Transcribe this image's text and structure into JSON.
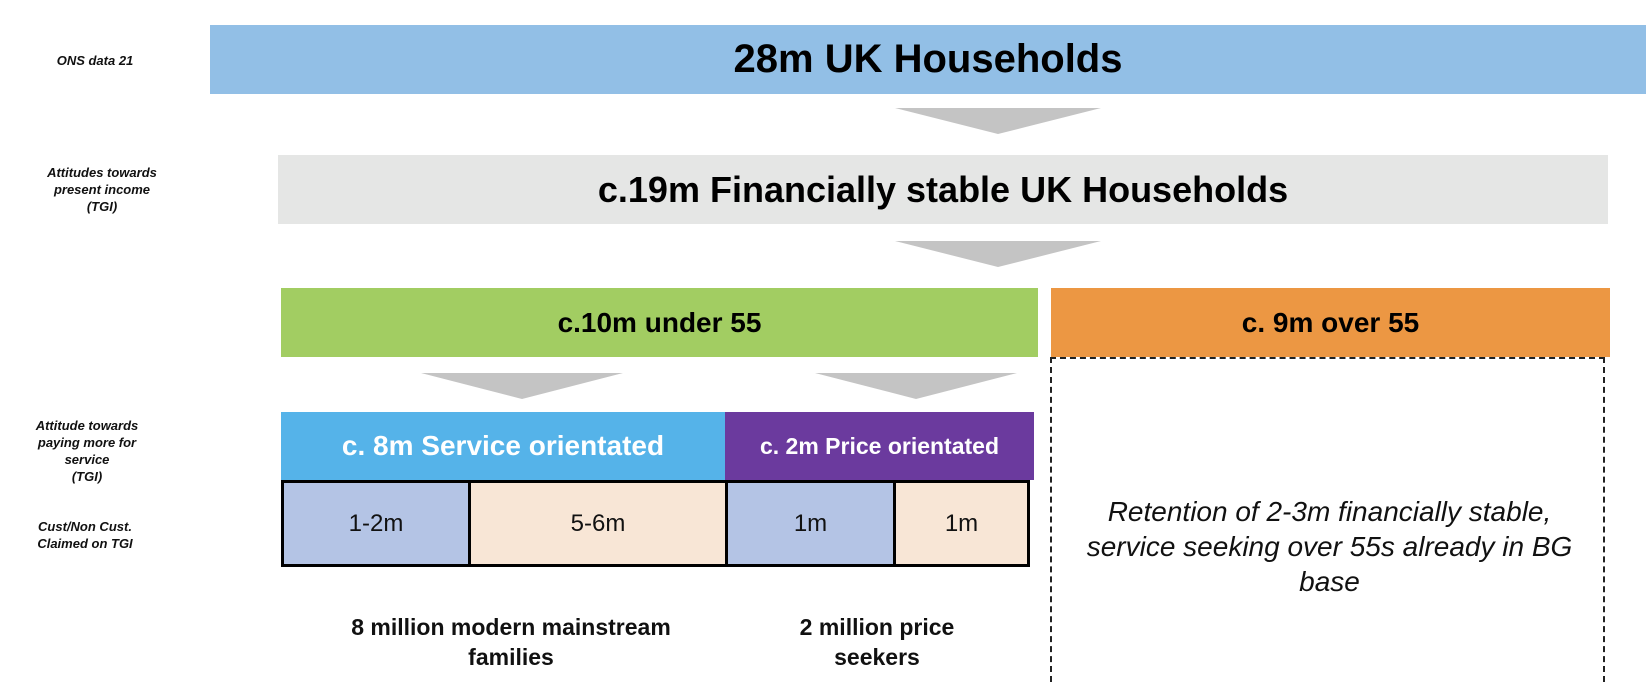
{
  "side_labels": {
    "ons": "ONS data 21",
    "present_income": [
      "Attitudes towards",
      "present income",
      "(TGI)"
    ],
    "paying_more": [
      "Attitude towards",
      "paying more for",
      "service",
      "(TGI)"
    ],
    "cust": [
      "Cust/Non Cust.",
      "Claimed on TGI"
    ]
  },
  "bands": {
    "households": "28m UK Households",
    "stable": "c.19m Financially stable UK Households",
    "under55": "c.10m under 55",
    "over55": "c. 9m over 55",
    "service": "c. 8m Service orientated",
    "price": "c. 2m Price orientated"
  },
  "cells": {
    "service_cust": "1-2m",
    "service_noncust": "5-6m",
    "price_cust": "1m",
    "price_noncust": "1m"
  },
  "captions": {
    "service": [
      "8 million modern mainstream",
      "families"
    ],
    "price": [
      "2 million price",
      "seekers"
    ]
  },
  "retention_text": "Retention of 2-3m financially stable, service seeking over 55s already in BG base",
  "colors": {
    "households": "#92bfe6",
    "stable": "#e5e6e5",
    "under55": "#a2cd62",
    "over55": "#ec9743",
    "service": "#55b3e9",
    "price": "#6b3a9e",
    "cust_cell": "#b4c4e5",
    "noncust_cell": "#f8e6d6",
    "chevron": "#c4c4c4"
  }
}
